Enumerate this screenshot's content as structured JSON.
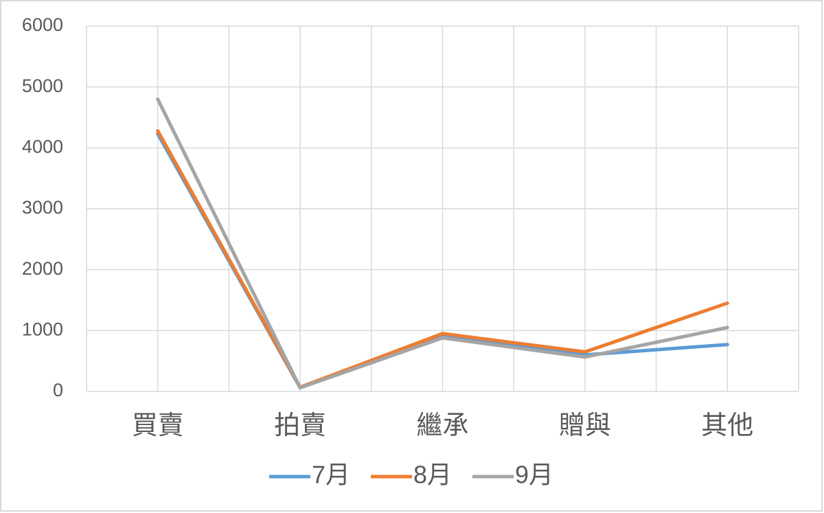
{
  "chart_data": {
    "type": "line",
    "categories": [
      "買賣",
      "拍賣",
      "繼承",
      "贈與",
      "其他"
    ],
    "series": [
      {
        "name": "7月",
        "color": "#5b9bd5",
        "values": [
          4230,
          60,
          900,
          600,
          770
        ]
      },
      {
        "name": "8月",
        "color": "#ed7d31",
        "values": [
          4280,
          70,
          950,
          650,
          1450
        ]
      },
      {
        "name": "9月",
        "color": "#a5a5a5",
        "values": [
          4800,
          60,
          880,
          565,
          1050
        ]
      }
    ],
    "ylim": [
      0,
      6000
    ],
    "yticks": [
      0,
      1000,
      2000,
      3000,
      4000,
      5000,
      6000
    ],
    "grid": true,
    "legend": "bottom"
  }
}
